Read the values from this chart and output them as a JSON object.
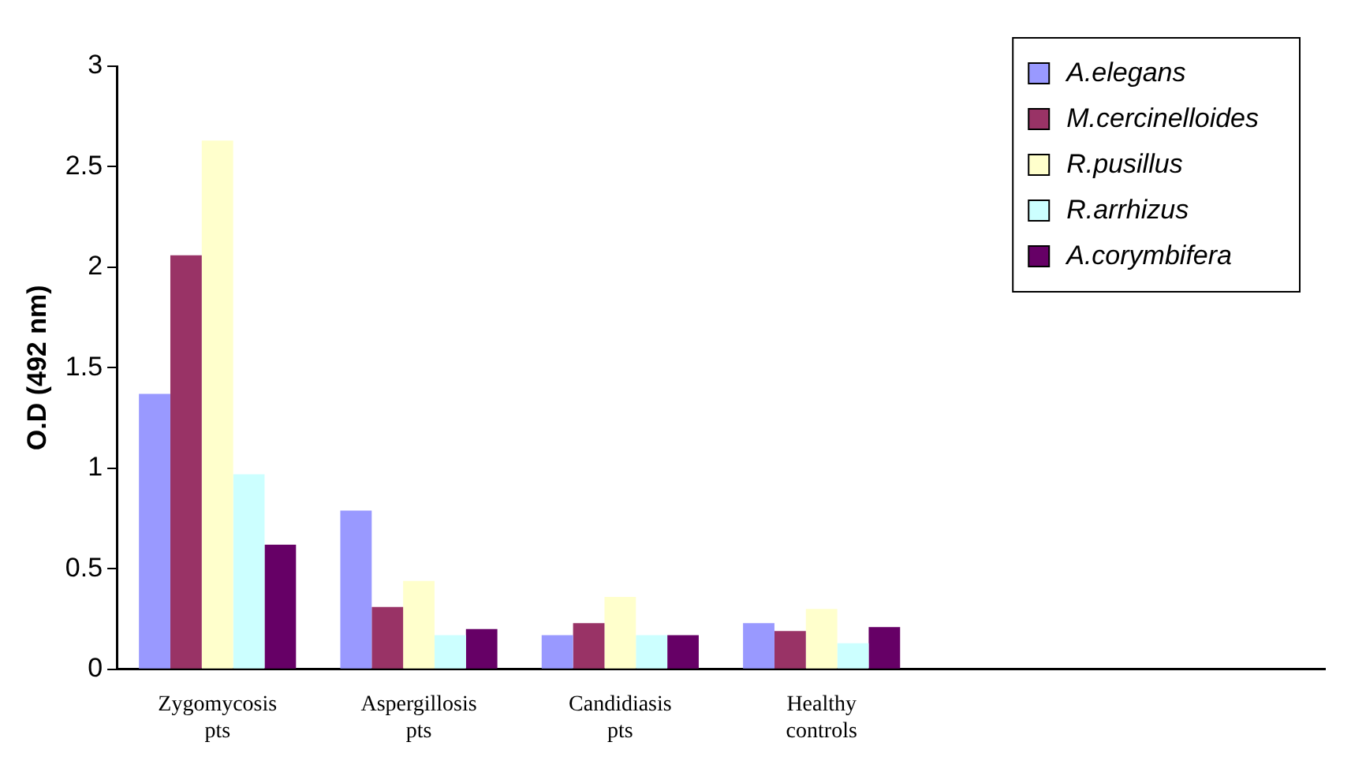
{
  "chart_data": {
    "type": "bar",
    "ylabel": "O.D (492 nm)",
    "categories": [
      "Zygomycosis pts",
      "Aspergillosis pts",
      "Candidiasis pts",
      "Healthy controls",
      null,
      null
    ],
    "series": [
      {
        "name": "A.elegans",
        "color": "#9999ff",
        "values": [
          1.37,
          0.79,
          0.17,
          0.23,
          null,
          null
        ]
      },
      {
        "name": "M.cercinelloides",
        "color": "#993366",
        "values": [
          2.06,
          0.31,
          0.23,
          0.19,
          null,
          null
        ]
      },
      {
        "name": "R.pusillus",
        "color": "#ffffcc",
        "values": [
          2.63,
          0.44,
          0.36,
          0.3,
          null,
          null
        ]
      },
      {
        "name": "R.arrhizus",
        "color": "#ccffff",
        "values": [
          0.97,
          0.17,
          0.17,
          0.13,
          null,
          null
        ]
      },
      {
        "name": "A.corymbifera",
        "color": "#660066",
        "values": [
          0.62,
          0.2,
          0.17,
          0.21,
          null,
          null
        ]
      }
    ],
    "ylim": [
      0,
      3
    ],
    "yticks": [
      0,
      0.5,
      1,
      1.5,
      2,
      2.5,
      3
    ],
    "grid": false,
    "legend": "top right"
  }
}
